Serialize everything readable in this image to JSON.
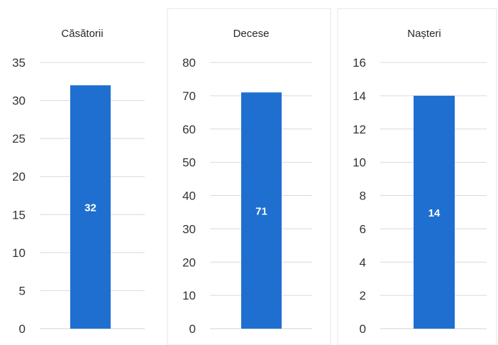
{
  "chart_data": [
    {
      "type": "bar",
      "title": "Căsătorii",
      "categories": [
        ""
      ],
      "values": [
        32
      ],
      "data_labels": [
        "32"
      ],
      "ylim": [
        0,
        35
      ],
      "yticks": [
        0,
        5,
        10,
        15,
        20,
        25,
        30,
        35
      ],
      "ytick_labels": [
        "0",
        "5",
        "10",
        "15",
        "20",
        "25",
        "30",
        "35"
      ],
      "grid": true,
      "legend": "none",
      "bar_color": "#1f6fd0",
      "label_color": "#ffffff"
    },
    {
      "type": "bar",
      "title": "Decese",
      "categories": [
        ""
      ],
      "values": [
        71
      ],
      "data_labels": [
        "71"
      ],
      "ylim": [
        0,
        80
      ],
      "yticks": [
        0,
        10,
        20,
        30,
        40,
        50,
        60,
        70,
        80
      ],
      "ytick_labels": [
        "0",
        "10",
        "20",
        "30",
        "40",
        "50",
        "60",
        "70",
        "80"
      ],
      "grid": true,
      "legend": "none",
      "bar_color": "#1f6fd0",
      "label_color": "#ffffff"
    },
    {
      "type": "bar",
      "title": "Nașteri",
      "categories": [
        ""
      ],
      "values": [
        14
      ],
      "data_labels": [
        "14"
      ],
      "ylim": [
        0,
        16
      ],
      "yticks": [
        0,
        2,
        4,
        6,
        8,
        10,
        12,
        14,
        16
      ],
      "ytick_labels": [
        "0",
        "2",
        "4",
        "6",
        "8",
        "10",
        "12",
        "14",
        "16"
      ],
      "grid": true,
      "legend": "none",
      "bar_color": "#1f6fd0",
      "label_color": "#ffffff"
    }
  ]
}
